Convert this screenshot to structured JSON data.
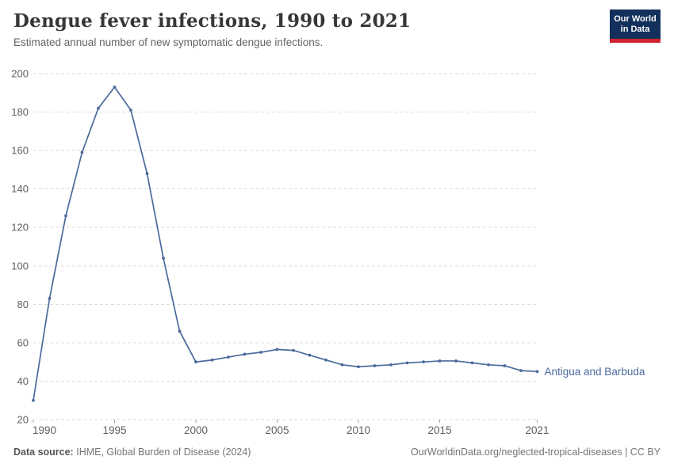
{
  "header": {
    "title": "Dengue fever infections, 1990 to 2021",
    "subtitle": "Estimated annual number of new symptomatic dengue infections.",
    "logo_line1": "Our World",
    "logo_line2": "in Data"
  },
  "colors": {
    "series": "#4c6a9c",
    "logo_navy": "#12305b",
    "logo_red": "#d0232e",
    "title_text": "#383636",
    "subtitle_text": "#646464",
    "tick_text": "#5f5f5f",
    "gridline": "#dedede",
    "tick_mark": "#a0a0a0"
  },
  "chart_data": {
    "type": "line",
    "title": "Dengue fever infections, 1990 to 2021",
    "subtitle": "Estimated annual number of new symptomatic dengue infections.",
    "xlabel": "",
    "ylabel": "",
    "xlim": [
      1990,
      2021
    ],
    "ylim": [
      20,
      200
    ],
    "x_ticks": [
      1990,
      1995,
      2000,
      2005,
      2010,
      2015,
      2021
    ],
    "y_ticks": [
      20,
      40,
      60,
      80,
      100,
      120,
      140,
      160,
      180,
      200
    ],
    "grid": {
      "horizontal": true,
      "vertical": false,
      "style": "dashed"
    },
    "legend": "label-at-line-end",
    "x": [
      1990,
      1991,
      1992,
      1993,
      1994,
      1995,
      1996,
      1997,
      1998,
      1999,
      2000,
      2001,
      2002,
      2003,
      2004,
      2005,
      2006,
      2007,
      2008,
      2009,
      2010,
      2011,
      2012,
      2013,
      2014,
      2015,
      2016,
      2017,
      2018,
      2019,
      2020,
      2021
    ],
    "series": [
      {
        "name": "Antigua and Barbuda",
        "color": "#4c6a9c",
        "values": [
          30,
          83,
          126,
          159,
          182,
          193,
          181,
          148,
          104,
          66,
          50,
          51,
          52.5,
          54,
          55,
          56.5,
          56,
          53.5,
          51,
          48.5,
          47.5,
          48,
          48.5,
          49.5,
          50,
          50.5,
          50.5,
          49.5,
          48.5,
          48,
          45.5,
          45
        ]
      }
    ]
  },
  "footer": {
    "source_label": "Data source:",
    "source_text": "IHME, Global Burden of Disease (2024)",
    "credit": "OurWorldinData.org/neglected-tropical-diseases | CC BY"
  }
}
